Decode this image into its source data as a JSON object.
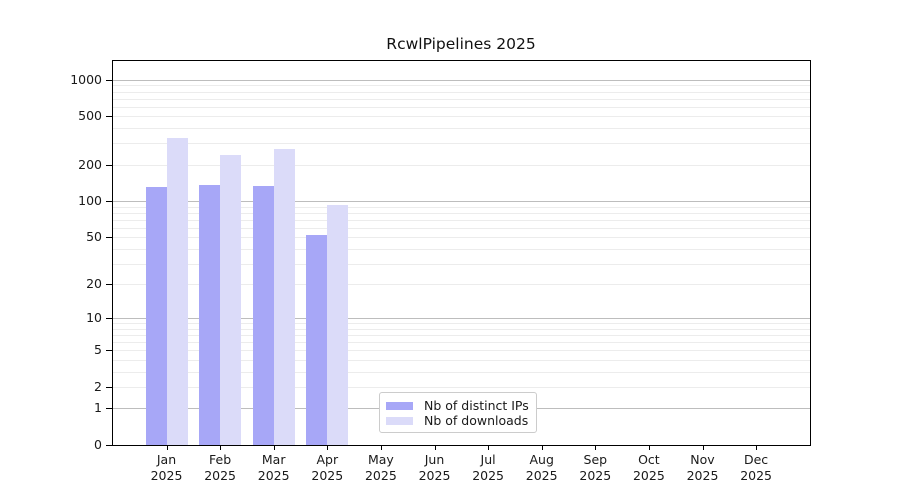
{
  "title": "RcwlPipelines 2025",
  "chart_data": {
    "type": "bar",
    "title": "RcwlPipelines 2025",
    "x_categories": [
      "Jan 2025",
      "Feb 2025",
      "Mar 2025",
      "Apr 2025",
      "May 2025",
      "Jun 2025",
      "Jul 2025",
      "Aug 2025",
      "Sep 2025",
      "Oct 2025",
      "Nov 2025",
      "Dec 2025"
    ],
    "series": [
      {
        "name": "Nb of distinct IPs",
        "color": "#a7a7f7",
        "values": [
          130,
          136,
          134,
          52,
          null,
          null,
          null,
          null,
          null,
          null,
          null,
          null
        ]
      },
      {
        "name": "Nb of downloads",
        "color": "#dbdbf9",
        "values": [
          335,
          240,
          270,
          93,
          null,
          null,
          null,
          null,
          null,
          null,
          null,
          null
        ]
      }
    ],
    "yscale": "log1p",
    "ylim": [
      0,
      1430
    ],
    "y_tick_values": [
      1000,
      500,
      200,
      100,
      50,
      20,
      10,
      5,
      2,
      1,
      0
    ],
    "grid": "horizontal, major and minor lines",
    "legend_position": "bottom-center"
  },
  "y_axis": {
    "tick_labels": [
      "1000",
      "500",
      "200",
      "100",
      "50",
      "20",
      "10",
      "5",
      "2",
      "1",
      "0"
    ]
  },
  "x_axis": {
    "month_labels": [
      "Jan",
      "Feb",
      "Mar",
      "Apr",
      "May",
      "Jun",
      "Jul",
      "Aug",
      "Sep",
      "Oct",
      "Nov",
      "Dec"
    ],
    "year_label": "2025"
  },
  "legend": {
    "items": [
      {
        "label": "Nb of distinct IPs"
      },
      {
        "label": "Nb of downloads"
      }
    ]
  },
  "colors": {
    "bar_distinct_ips": "#a7a7f7",
    "bar_downloads": "#dbdbf9",
    "grid_major": "#bdbdbd",
    "grid_minor": "#ececec",
    "axis_line": "#000000",
    "legend_border": "#cccccc",
    "text": "#1a1a1a"
  }
}
